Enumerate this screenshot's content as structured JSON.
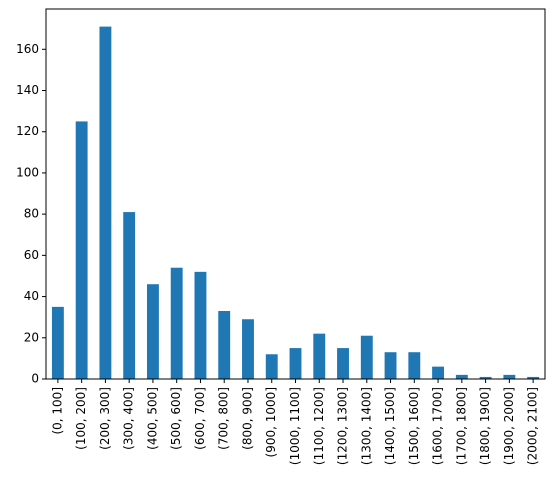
{
  "chart_data": {
    "type": "bar",
    "categories": [
      "(0, 100]",
      "(100, 200]",
      "(200, 300]",
      "(300, 400]",
      "(400, 500]",
      "(500, 600]",
      "(600, 700]",
      "(700, 800]",
      "(800, 900]",
      "(900, 1000]",
      "(1000, 1100]",
      "(1100, 1200]",
      "(1200, 1300]",
      "(1300, 1400]",
      "(1400, 1500]",
      "(1500, 1600]",
      "(1600, 1700]",
      "(1700, 1800]",
      "(1800, 1900]",
      "(1900, 2000]",
      "(2000, 2100]"
    ],
    "values": [
      35,
      125,
      171,
      81,
      46,
      54,
      52,
      33,
      29,
      12,
      15,
      22,
      15,
      21,
      13,
      13,
      6,
      2,
      1,
      2,
      1
    ],
    "color": "#1f77b4",
    "ylim": [
      0,
      179.55
    ],
    "yticks": [
      0,
      20,
      40,
      60,
      80,
      100,
      120,
      140,
      160
    ],
    "grid": false
  }
}
